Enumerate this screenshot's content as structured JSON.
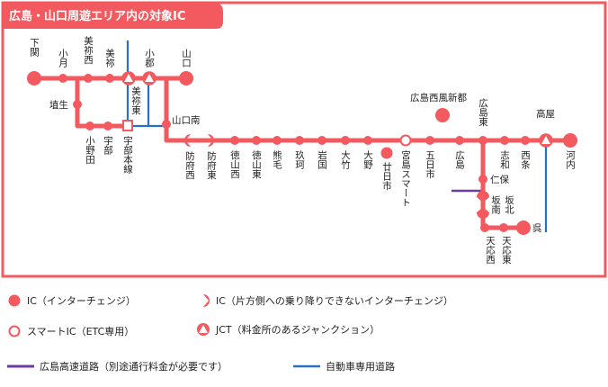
{
  "title": "広島・山口周遊エリア内の対象IC",
  "colors": {
    "accent": "#f25a5f",
    "expressway": "#6a3aa8",
    "road": "#2b6fc0",
    "text": "#222222"
  },
  "stations": {
    "shimonoseki": "下関",
    "ogori": "小月",
    "mine_nishi": "美祢西",
    "mine": "美祢",
    "ogori_jct": "小郡",
    "yamaguchi": "山口",
    "mine_higashi": "美祢東",
    "hanyu": "埴生",
    "onoda": "小野田",
    "ube": "宇部",
    "ube_honsen": "宇部本線",
    "yamaguchi_minami": "山口南",
    "hofu_nishi": "防府西",
    "hofu_higashi": "防府東",
    "tokuyama_nishi": "徳山西",
    "tokuyama_higashi": "徳山東",
    "kumage": "熊毛",
    "kuga": "玖珂",
    "iwakuni": "岩国",
    "otake": "大竹",
    "ono": "大野",
    "hatsukaichi": "廿日市",
    "miyajima_smart": "宮島スマート",
    "itsukaichi": "五日市",
    "hiroshima": "広島",
    "hiroshima_seifu": "広島西風新都",
    "hiroshima_higashi": "広島東",
    "shiwa": "志和",
    "saijo": "西条",
    "takaya": "高屋",
    "kochi": "河内",
    "niho": "仁保",
    "saka_kita": "坂北",
    "saka_minami": "坂南",
    "tenoh_nishi": "天応西",
    "tenoh_higashi": "天応東",
    "kure": "呉"
  },
  "legend": {
    "ic": "IC（インターチェンジ）",
    "half_ic": "IC（片方側への乗り降りできないインターチェンジ）",
    "smart_ic": "スマートIC（ETC専用）",
    "jct": "JCT（料金所のあるジャンクション）",
    "expressway": "広島高速道路（別途通行料金が必要です）",
    "road": "自動車専用道路"
  }
}
